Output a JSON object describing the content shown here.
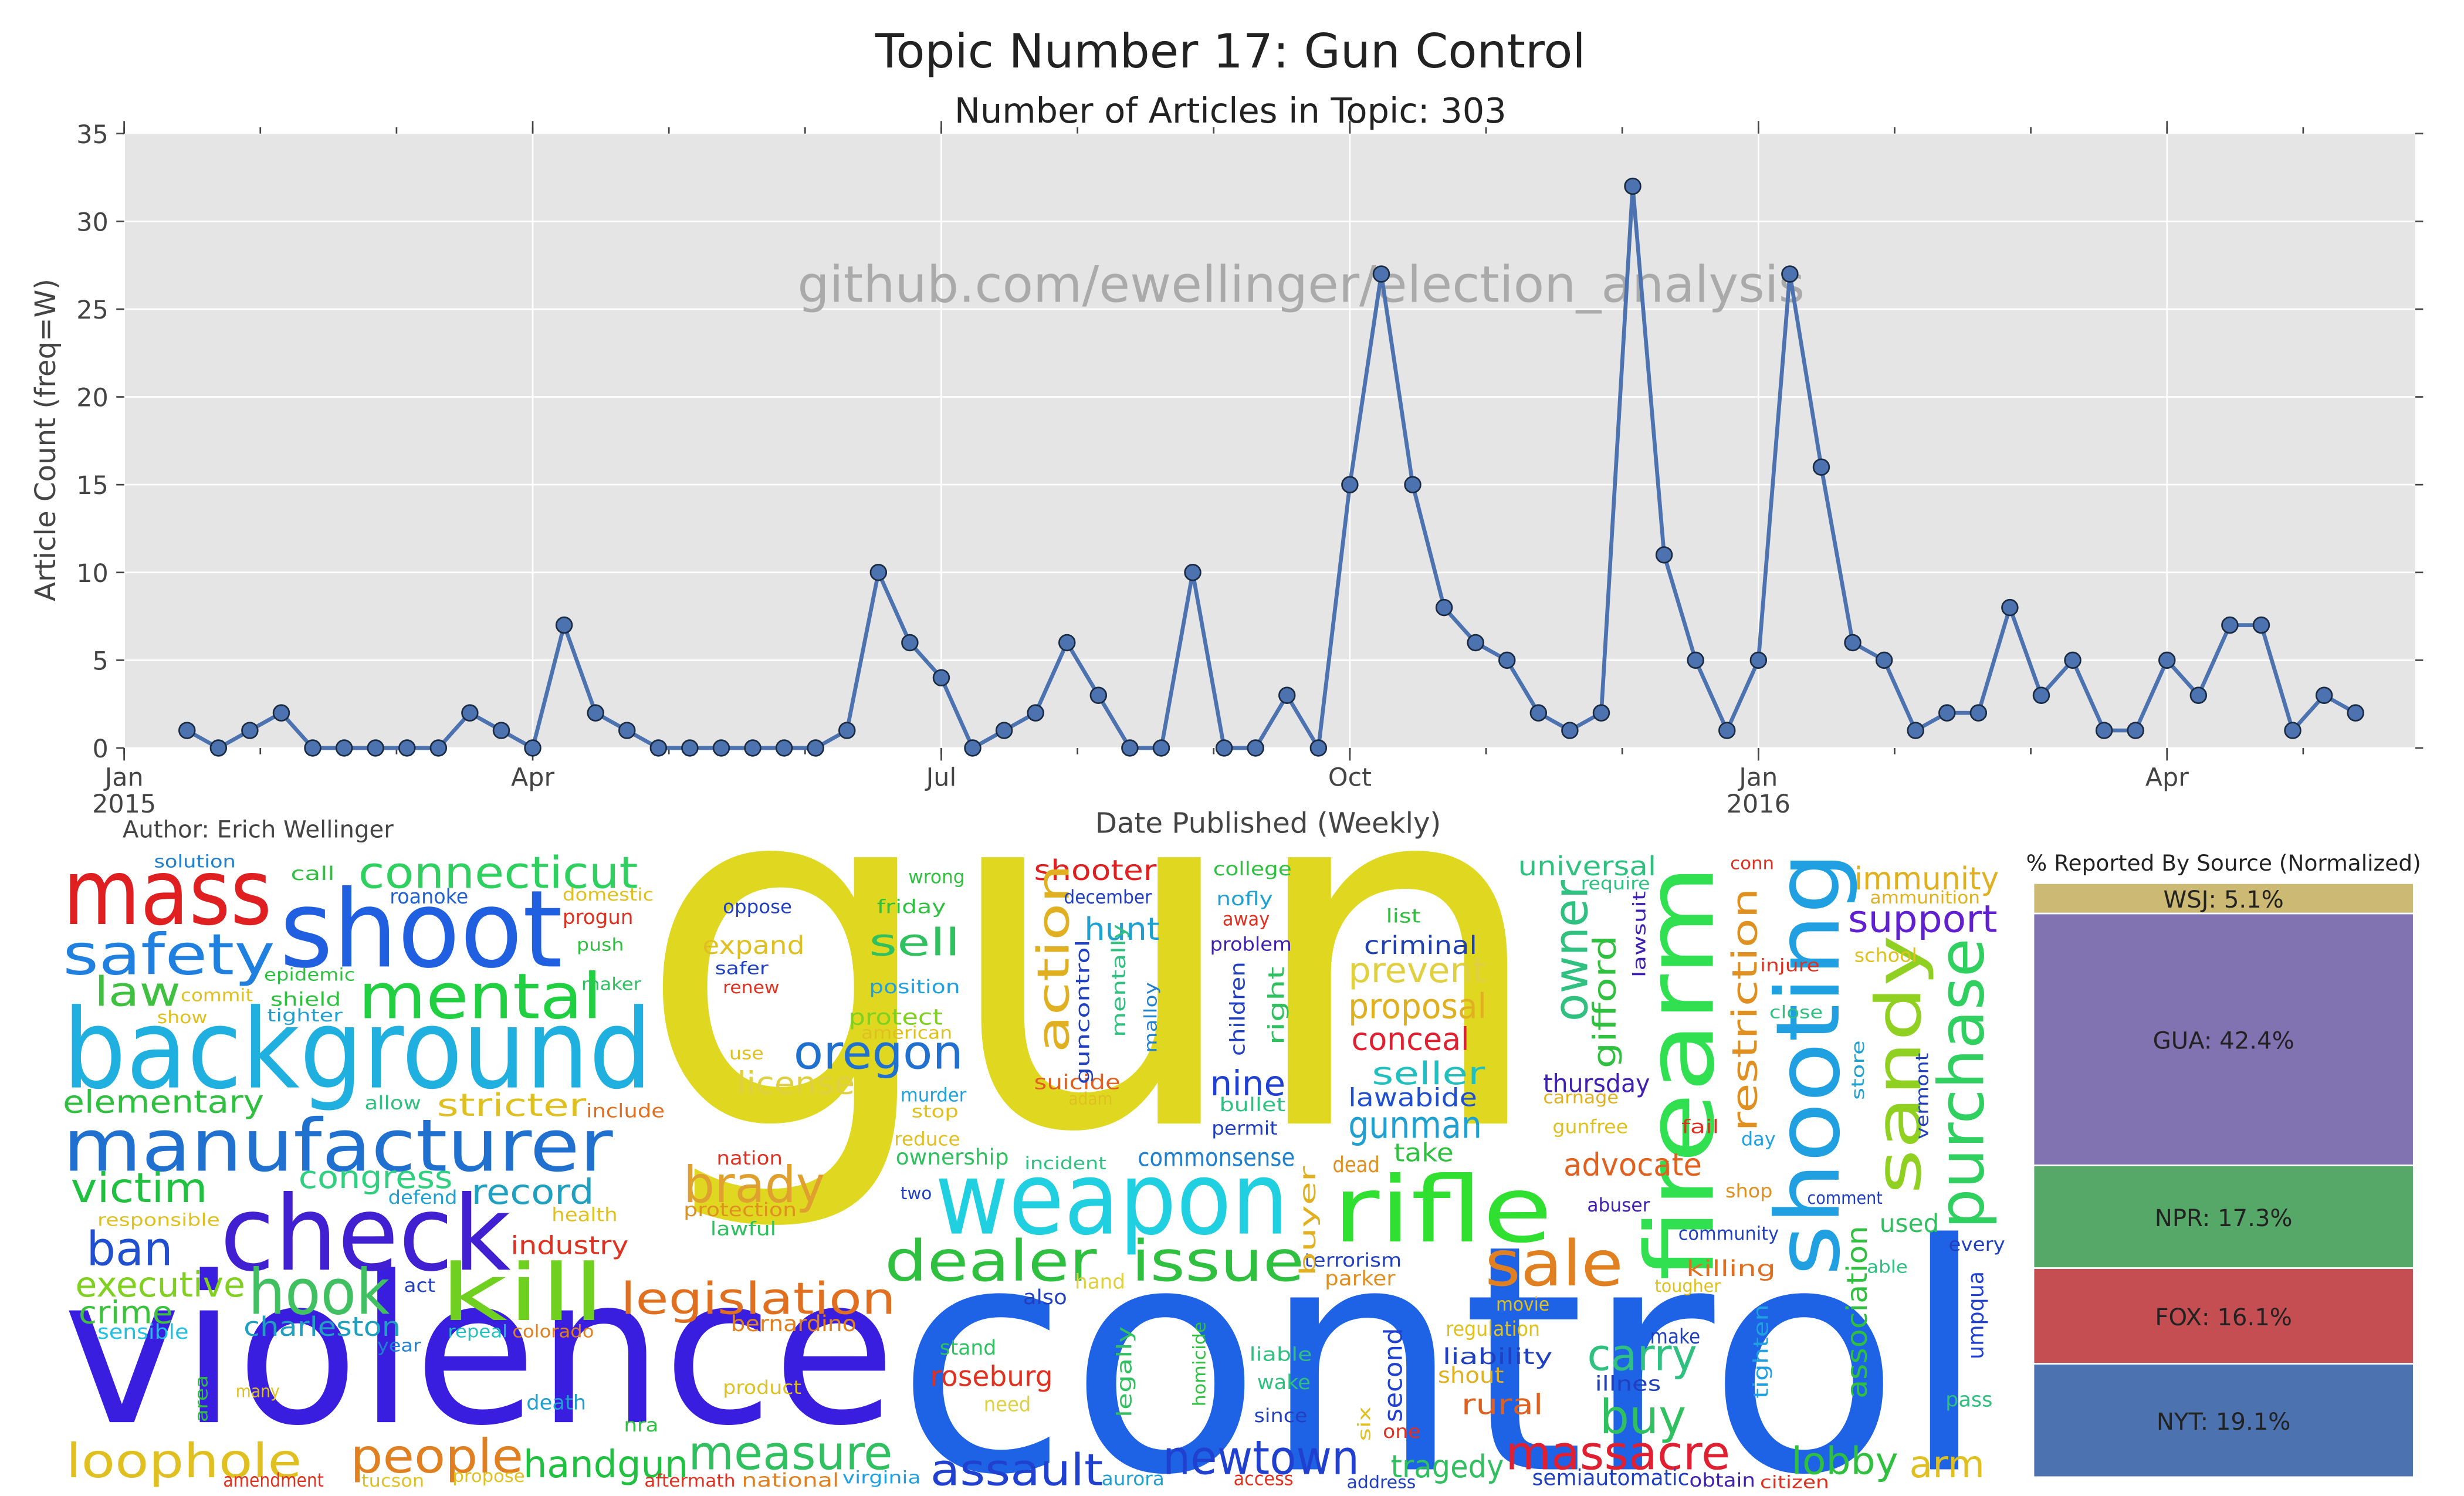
{
  "chart_data": [
    {
      "type": "line",
      "title": "Topic Number 17: Gun Control",
      "subtitle": "Number of Articles in Topic: 303",
      "watermark": "github.com/ewellinger/election_analysis",
      "xlabel": "Date Published (Weekly)",
      "ylabel": "Article Count (freq=W)",
      "author": "Author: Erich Wellinger",
      "color": "#4c72b0",
      "grid": true,
      "ylim": [
        0,
        35
      ],
      "yticks": [
        0,
        5,
        10,
        15,
        20,
        25,
        30,
        35
      ],
      "xticks": [
        {
          "value": "2015-01",
          "label": "Jan\n2015"
        },
        {
          "value": "2015-04",
          "label": "Apr"
        },
        {
          "value": "2015-07",
          "label": "Jul"
        },
        {
          "value": "2015-10",
          "label": "Oct"
        },
        {
          "value": "2016-01",
          "label": "Jan\n2016"
        },
        {
          "value": "2016-04",
          "label": "Apr"
        }
      ],
      "values": [
        1,
        0,
        1,
        2,
        0,
        0,
        0,
        0,
        0,
        2,
        1,
        0,
        7,
        2,
        1,
        0,
        0,
        0,
        0,
        0,
        0,
        1,
        10,
        6,
        4,
        0,
        1,
        2,
        6,
        3,
        0,
        0,
        10,
        0,
        0,
        3,
        0,
        15,
        27,
        15,
        8,
        6,
        5,
        2,
        1,
        2,
        32,
        11,
        5,
        1,
        5,
        27,
        16,
        6,
        5,
        1,
        2,
        2,
        8,
        3,
        5,
        1,
        1,
        5,
        3,
        7,
        7,
        1,
        3,
        2
      ]
    },
    {
      "type": "stacked-bar",
      "title": "% Reported By Source (Normalized)",
      "ylim": [
        0,
        100
      ],
      "categories": [
        "NYT",
        "FOX",
        "NPR",
        "GUA",
        "WSJ"
      ],
      "values": [
        19.1,
        16.1,
        17.3,
        42.4,
        5.1
      ],
      "value_labels": [
        "NYT: 19.1%",
        "FOX: 16.1%",
        "NPR: 17.3%",
        "GUA: 42.4%",
        "WSJ: 5.1%"
      ],
      "colors": [
        "#4c72b0",
        "#c44e52",
        "#55a868",
        "#8172b2",
        "#ccb974"
      ]
    }
  ],
  "wordcloud": {
    "words": [
      "gun",
      "control",
      "violence",
      "mass",
      "shoot",
      "safety",
      "background",
      "connecticut",
      "mental",
      "law",
      "manufacturer",
      "elementary",
      "victim",
      "check",
      "ban",
      "executive",
      "crime",
      "sensible",
      "hook",
      "kill",
      "charleston",
      "congress",
      "record",
      "industry",
      "legislation",
      "loophole",
      "people",
      "handgun",
      "measure",
      "stricter",
      "oregon",
      "sell",
      "expand",
      "license",
      "brady",
      "weapon",
      "dealer",
      "issue",
      "rifle",
      "shooter",
      "action",
      "nine",
      "hunt",
      "sale",
      "firearm",
      "shooting",
      "sandy",
      "purchase",
      "owner",
      "gifford",
      "restriction",
      "support",
      "immunity",
      "universal",
      "prevent",
      "proposal",
      "conceal",
      "criminal",
      "seller",
      "lawabide",
      "gunman",
      "thursday",
      "advocate",
      "take",
      "commonsense",
      "dead",
      "massacre",
      "buy",
      "carry",
      "lobby",
      "arm",
      "newtown",
      "assault",
      "tragedy",
      "rural",
      "liability",
      "roseburg",
      "terrorism",
      "second",
      "association",
      "umpqua",
      "used",
      "every",
      "semiautomatic",
      "suicide",
      "nation",
      "protection",
      "lawful",
      "bernardino",
      "solution",
      "roanoke",
      "progun",
      "call",
      "oppose",
      "friday",
      "wrong",
      "college",
      "december",
      "nofly",
      "away",
      "problem",
      "list",
      "position",
      "protect",
      "american",
      "murder",
      "stop",
      "reduce",
      "ownership",
      "incident",
      "two",
      "permit",
      "bullet",
      "also",
      "hand",
      "stand",
      "need",
      "since",
      "wake",
      "liable",
      "aurora",
      "access",
      "address",
      "one",
      "shout",
      "parker",
      "regulation",
      "movie",
      "make",
      "illnes",
      "tougher",
      "killing",
      "community",
      "abuser",
      "gunfree",
      "fail",
      "day",
      "shop",
      "comment",
      "school",
      "ammunition",
      "require",
      "conn",
      "injure",
      "close",
      "carnage",
      "able",
      "pass",
      "citizen",
      "obtain",
      "aftermath",
      "national",
      "virginia",
      "amendment",
      "tucson",
      "propose",
      "nra",
      "death",
      "product",
      "colorado",
      "repeal",
      "year",
      "many",
      "act",
      "defend",
      "health",
      "responsible",
      "allow",
      "include",
      "commit",
      "shield",
      "tighter",
      "epidemic",
      "show",
      "maker",
      "push",
      "domestic",
      "safer",
      "renew",
      "use",
      "adam",
      "guncontrol",
      "mentally",
      "malloy",
      "children",
      "right",
      "buyer",
      "legally",
      "homicide",
      "tighten",
      "lawsuit",
      "store",
      "vermont",
      "area",
      "six"
    ]
  }
}
